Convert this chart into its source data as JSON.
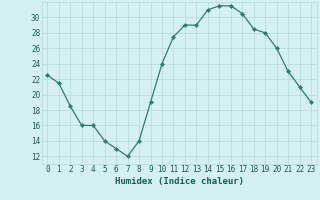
{
  "x": [
    0,
    1,
    2,
    3,
    4,
    5,
    6,
    7,
    8,
    9,
    10,
    11,
    12,
    13,
    14,
    15,
    16,
    17,
    18,
    19,
    20,
    21,
    22,
    23
  ],
  "y": [
    22.5,
    21.5,
    18.5,
    16.0,
    16.0,
    14.0,
    13.0,
    12.0,
    14.0,
    19.0,
    24.0,
    27.5,
    29.0,
    29.0,
    31.0,
    31.5,
    31.5,
    30.5,
    28.5,
    28.0,
    26.0,
    23.0,
    21.0,
    19.0
  ],
  "xlabel": "Humidex (Indice chaleur)",
  "xlim": [
    -0.5,
    23.5
  ],
  "ylim": [
    11,
    32
  ],
  "yticks": [
    12,
    14,
    16,
    18,
    20,
    22,
    24,
    26,
    28,
    30
  ],
  "xticks": [
    0,
    1,
    2,
    3,
    4,
    5,
    6,
    7,
    8,
    9,
    10,
    11,
    12,
    13,
    14,
    15,
    16,
    17,
    18,
    19,
    20,
    21,
    22,
    23
  ],
  "line_color": "#2e7d6e",
  "marker": "D",
  "marker_size": 2.0,
  "bg_color": "#d4f0f0",
  "grid_color": "#b8d8d8",
  "label_color": "#1a5c50",
  "tick_color": "#1a5c50",
  "tick_fontsize": 5.5,
  "xlabel_fontsize": 6.5
}
